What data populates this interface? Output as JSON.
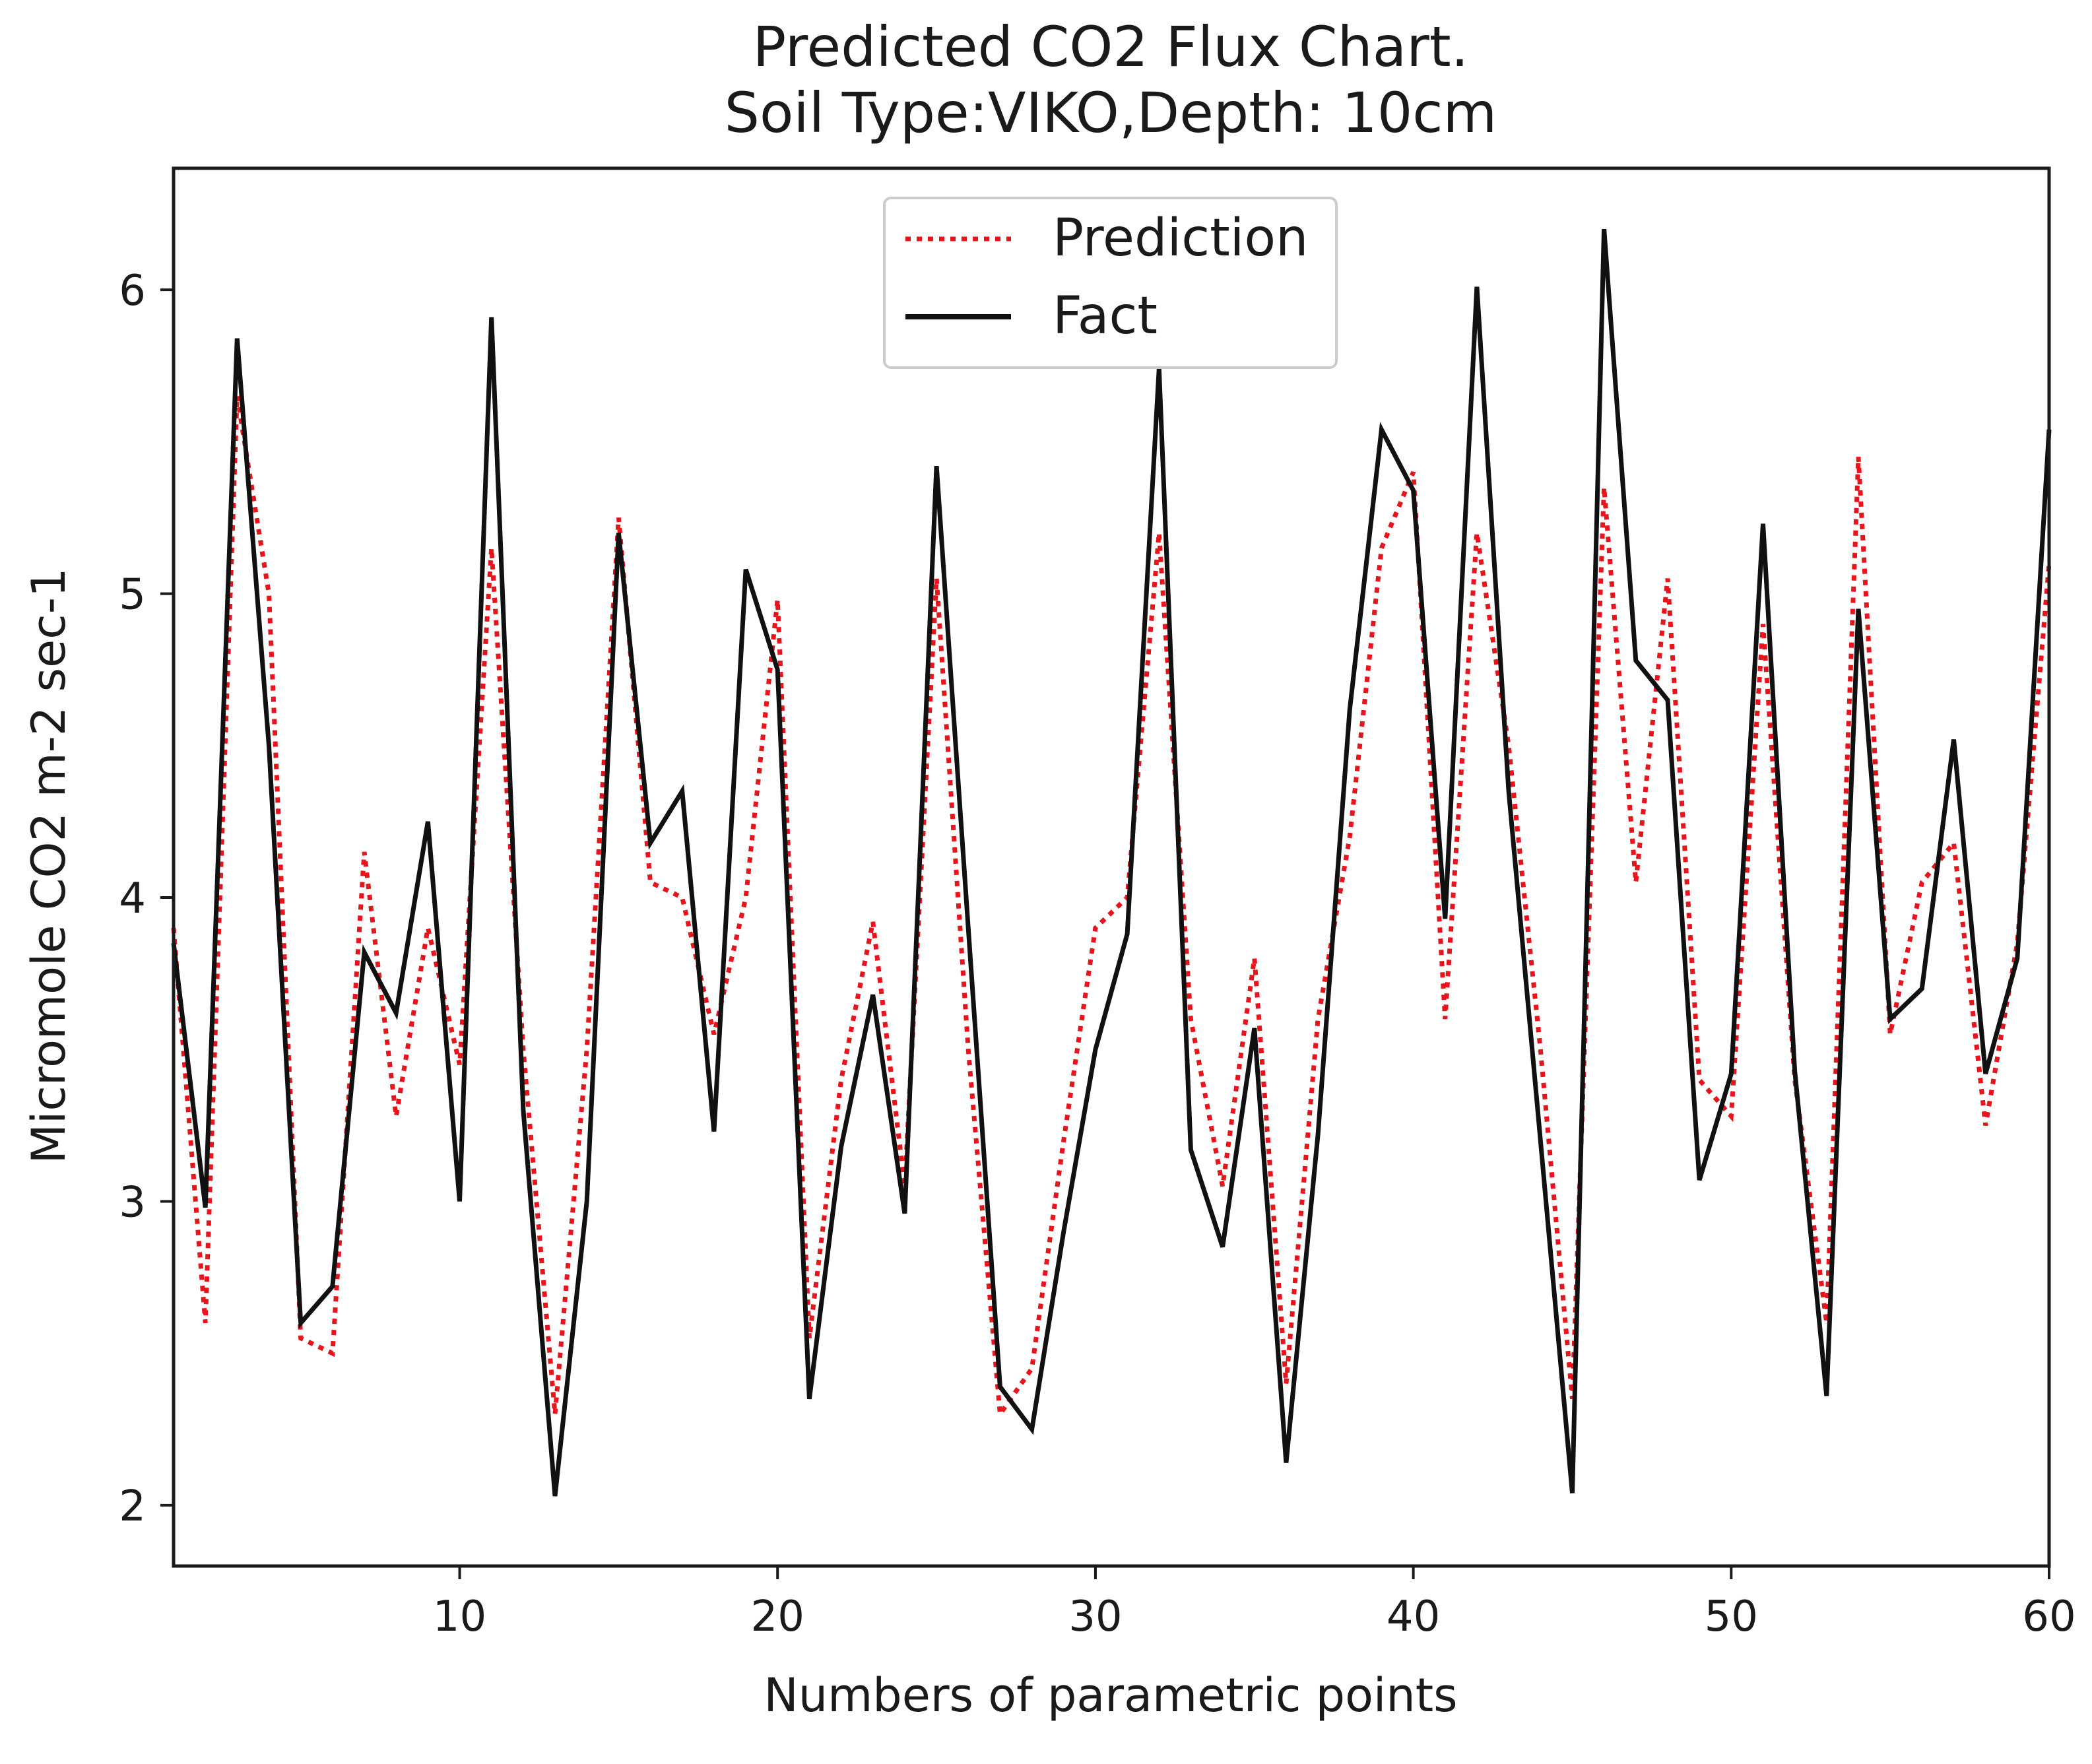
{
  "chart_data": {
    "type": "line",
    "title": "Predicted CO2 Flux Chart.",
    "subtitle": "Soil Type:VIKO,Depth: 10cm",
    "xlabel": "Numbers of parametric points",
    "ylabel": "Micromole CO2 m-2 sec-1",
    "xlim": [
      1,
      60
    ],
    "ylim": [
      1.8,
      6.4
    ],
    "xticks": [
      10,
      20,
      30,
      40,
      50,
      60
    ],
    "yticks": [
      2,
      3,
      4,
      5,
      6
    ],
    "grid": false,
    "legend_position": "top-center",
    "x": [
      1,
      2,
      3,
      4,
      5,
      6,
      7,
      8,
      9,
      10,
      11,
      12,
      13,
      14,
      15,
      16,
      17,
      18,
      19,
      20,
      21,
      22,
      23,
      24,
      25,
      26,
      27,
      28,
      29,
      30,
      31,
      32,
      33,
      34,
      35,
      36,
      37,
      38,
      39,
      40,
      41,
      42,
      43,
      44,
      45,
      46,
      47,
      48,
      49,
      50,
      51,
      52,
      53,
      54,
      55,
      56,
      57,
      58,
      59,
      60
    ],
    "series": [
      {
        "name": "Prediction",
        "color": "#e8141c",
        "style": "dotted",
        "values": [
          3.9,
          2.6,
          5.65,
          5.0,
          2.55,
          2.5,
          4.15,
          3.28,
          3.9,
          3.45,
          5.15,
          3.5,
          2.3,
          3.5,
          5.25,
          4.05,
          4.0,
          3.55,
          4.0,
          4.98,
          2.55,
          3.4,
          3.92,
          3.05,
          5.05,
          3.5,
          2.3,
          2.45,
          3.2,
          3.9,
          4.0,
          5.2,
          3.6,
          3.05,
          3.8,
          2.4,
          3.6,
          4.2,
          5.15,
          5.4,
          3.6,
          5.2,
          4.5,
          3.5,
          2.35,
          5.35,
          4.05,
          5.05,
          3.4,
          3.28,
          4.9,
          3.4,
          2.6,
          5.45,
          3.55,
          4.05,
          4.18,
          3.25,
          3.85,
          5.1
        ]
      },
      {
        "name": "Fact",
        "color": "#111111",
        "style": "solid",
        "values": [
          3.85,
          2.98,
          5.84,
          4.5,
          2.6,
          2.72,
          3.82,
          3.62,
          4.25,
          3.0,
          5.91,
          3.3,
          2.03,
          3.0,
          5.2,
          4.18,
          4.35,
          3.23,
          5.08,
          4.75,
          2.35,
          3.18,
          3.68,
          2.96,
          5.42,
          3.9,
          2.39,
          2.25,
          2.9,
          3.5,
          3.88,
          5.74,
          3.17,
          2.85,
          3.57,
          2.14,
          3.22,
          4.62,
          5.54,
          5.34,
          3.93,
          6.01,
          4.35,
          3.2,
          2.04,
          6.2,
          4.78,
          4.65,
          3.07,
          3.42,
          5.23,
          3.43,
          2.36,
          4.95,
          3.6,
          3.7,
          4.52,
          3.42,
          3.8,
          5.54
        ]
      }
    ]
  }
}
